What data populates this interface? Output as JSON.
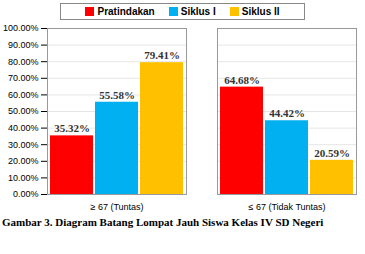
{
  "chart_data": {
    "type": "bar",
    "caption": "Gambar 3.  Diagram Batang Lompat Jauh Siswa Kelas IV SD Negeri",
    "categories": [
      "≥ 67 (Tuntas)",
      "≤ 67 (Tidak Tuntas)"
    ],
    "series": [
      {
        "name": "Pratindakan",
        "color": "#ff0000",
        "values": [
          35.32,
          64.68
        ],
        "value_labels": [
          "35.32%",
          "64.68%"
        ]
      },
      {
        "name": "Siklus I",
        "color": "#00b0f0",
        "values": [
          55.58,
          44.42
        ],
        "value_labels": [
          "55.58%",
          "44.42%"
        ]
      },
      {
        "name": "Siklus II",
        "color": "#ffc000",
        "values": [
          79.41,
          20.59
        ],
        "value_labels": [
          "79.41%",
          "20.59%"
        ]
      }
    ],
    "ylim": [
      0,
      100
    ],
    "yticks": [
      {
        "value": 0,
        "label": "0.00%"
      },
      {
        "value": 10,
        "label": "10.00%"
      },
      {
        "value": 20,
        "label": "20.00%"
      },
      {
        "value": 30,
        "label": "30.00%"
      },
      {
        "value": 40,
        "label": "40.00%"
      },
      {
        "value": 50,
        "label": "50.00%"
      },
      {
        "value": 60,
        "label": "60.00%"
      },
      {
        "value": 70,
        "label": "70.00%"
      },
      {
        "value": 80,
        "label": "80.00%"
      },
      {
        "value": 90,
        "label": "90.00%"
      },
      {
        "value": 100,
        "label": "100.00%"
      }
    ],
    "grid": true,
    "legend": "top",
    "data_labels": true
  }
}
